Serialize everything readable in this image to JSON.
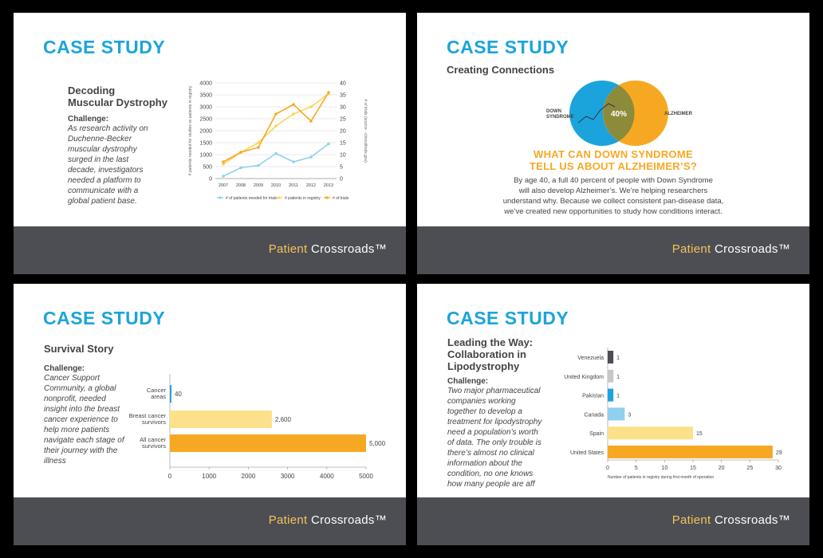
{
  "brand": {
    "part1": "Patient",
    "part2": "Crossroads™"
  },
  "slide1": {
    "title": "CASE STUDY",
    "subtitle_l1": "Decoding",
    "subtitle_l2": "Muscular Dystrophy",
    "challenge_heading": "Challenge:",
    "challenge_lines": [
      "As research activity on",
      "Duchenne-Becker",
      "muscular dystrophy",
      "surged in the last",
      "decade, investigators",
      "needed a platform to",
      "communicate with a",
      "global patient base."
    ]
  },
  "slide2": {
    "title": "CASE STUDY",
    "subtitle": "Creating Connections",
    "venn_left": [
      "DOWN",
      "SYNDROME"
    ],
    "venn_right": "ALZHEIMER",
    "overlap": "40%",
    "headline_l1": "WHAT CAN DOWN SYNDROME",
    "headline_l2": "TELL US ABOUT ALZHEIMER’S?",
    "body_lines": [
      "By age 40, a full 40 percent of people with Down Syndrome",
      "will also develop Alzheimer’s. We’re helping researchers",
      "understand why. Because we collect consistent pan-disease data,",
      "we’ve created new opportunities to study how conditions interact."
    ],
    "colors": {
      "blue": "#1ba4dc",
      "orange": "#f7a823",
      "overlap": "#8b8b3a"
    }
  },
  "slide3": {
    "title": "CASE STUDY",
    "subtitle": "Survival Story",
    "challenge_heading": "Challenge:",
    "challenge_lines": [
      "Cancer Support",
      "Community, a global",
      "nonprofit, needed",
      "insight into the breast",
      "cancer experience to",
      "help more patients",
      "navigate each stage of",
      "their journey with the",
      "illness"
    ]
  },
  "slide4": {
    "title": "CASE STUDY",
    "subtitle_lines": [
      "Leading the Way:",
      "Collaboration in",
      "Lipodystrophy"
    ],
    "challenge_heading": "Challenge:",
    "challenge_lines": [
      "Two major pharmaceutical",
      "companies working",
      "together to develop a",
      "treatment for lipodystrophy",
      "need a population’s worth",
      "of data. The only trouble is",
      "there’s almost no clinical",
      "information about the",
      "condition, no one knows",
      "how many people are aff"
    ]
  },
  "chart_data": [
    {
      "type": "line",
      "x": [
        "2007",
        "2008",
        "2009",
        "2010",
        "2011",
        "2012",
        "2013"
      ],
      "ylabel": "# patients needed for studies vs patients in registry",
      "y2label": "# of trials (source - clinicaltrials.gov)",
      "ylim": [
        0,
        4000
      ],
      "yticks": [
        0,
        500,
        1000,
        1500,
        2000,
        2500,
        3000,
        3500,
        4000
      ],
      "y2lim": [
        0,
        40
      ],
      "y2ticks": [
        0,
        5,
        10,
        15,
        20,
        25,
        30,
        35,
        40
      ],
      "series": [
        {
          "name": "# of patients needed for trials",
          "axis": "left",
          "color": "#8fd0ee",
          "values": [
            100,
            450,
            550,
            1050,
            700,
            900,
            1450
          ]
        },
        {
          "name": "# patients in registry",
          "axis": "left",
          "color": "#fbd55c",
          "values": [
            600,
            1100,
            1500,
            2200,
            2700,
            3000,
            3550
          ]
        },
        {
          "name": "# of trials",
          "axis": "right",
          "color": "#f7a823",
          "values": [
            7,
            11,
            13,
            27,
            31,
            24,
            36
          ]
        }
      ]
    },
    {
      "type": "bar",
      "orientation": "horizontal",
      "categories": [
        "Cancer areas",
        "Breast cancer survivors",
        "All cancer survivors"
      ],
      "category_lines": [
        [
          "Cancer",
          "areas"
        ],
        [
          "Breast cancer",
          "survivors"
        ],
        [
          "All cancer",
          "survivors"
        ]
      ],
      "values": [
        40,
        2600,
        5000
      ],
      "value_labels": [
        "40",
        "2,600",
        "5,000"
      ],
      "colors": [
        "#1ba4dc",
        "#fce18a",
        "#f7a823"
      ],
      "xlim": [
        0,
        5000
      ],
      "xticks": [
        0,
        1000,
        2000,
        3000,
        4000,
        5000
      ]
    },
    {
      "type": "bar",
      "orientation": "horizontal",
      "categories": [
        "Venezuela",
        "United Kingdom",
        "Pakistan",
        "Canada",
        "Spain",
        "United States"
      ],
      "values": [
        1,
        1,
        1,
        3,
        15,
        29
      ],
      "colors": [
        "#4d4e53",
        "#c8c8c8",
        "#1ba4dc",
        "#8fd0ee",
        "#fce18a",
        "#f7a823"
      ],
      "xlim": [
        0,
        30
      ],
      "xticks": [
        0,
        5,
        10,
        15,
        20,
        25,
        30
      ],
      "xlabel": "Number of patients in registry during first month of operation"
    }
  ]
}
